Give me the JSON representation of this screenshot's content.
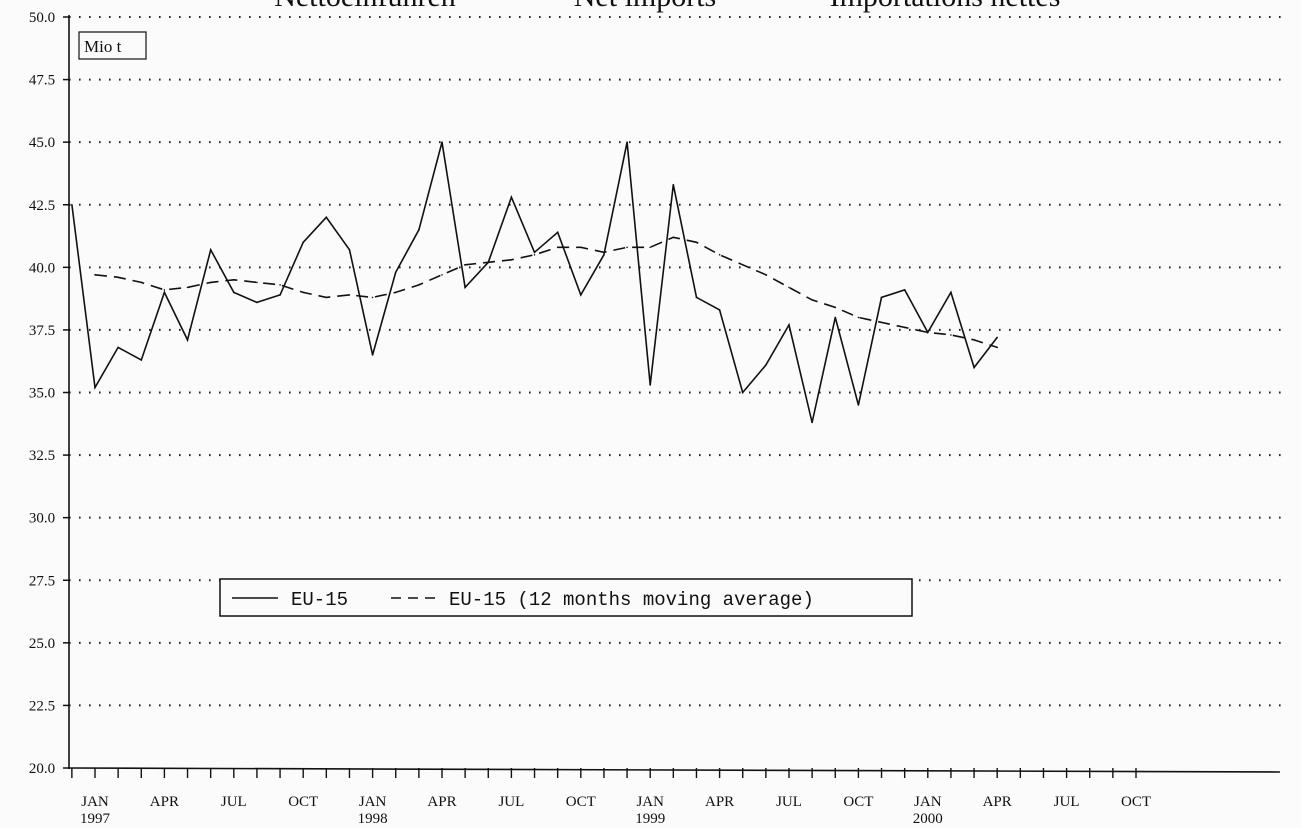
{
  "chart_data": {
    "type": "line",
    "title_parts": [
      "Nettoeinfuhren",
      "Net imports",
      "Importations nettes"
    ],
    "ylabel": "Mio t",
    "ylim": [
      20.0,
      50.0
    ],
    "yticks": [
      "20.0",
      "22.5",
      "25.0",
      "27.5",
      "30.0",
      "32.5",
      "35.0",
      "37.5",
      "40.0",
      "42.5",
      "45.0",
      "47.5",
      "50.0"
    ],
    "grid": true,
    "legend_position": "center-left",
    "x_start": "1997-01",
    "x_end": "2000-10",
    "xtick_labels": [
      {
        "month": 0,
        "label": "JAN",
        "year": "1997"
      },
      {
        "month": 3,
        "label": "APR",
        "year": ""
      },
      {
        "month": 6,
        "label": "JUL",
        "year": ""
      },
      {
        "month": 9,
        "label": "OCT",
        "year": ""
      },
      {
        "month": 12,
        "label": "JAN",
        "year": "1998"
      },
      {
        "month": 15,
        "label": "APR",
        "year": ""
      },
      {
        "month": 18,
        "label": "JUL",
        "year": ""
      },
      {
        "month": 21,
        "label": "OCT",
        "year": ""
      },
      {
        "month": 24,
        "label": "JAN",
        "year": "1999"
      },
      {
        "month": 27,
        "label": "APR",
        "year": ""
      },
      {
        "month": 30,
        "label": "JUL",
        "year": ""
      },
      {
        "month": 33,
        "label": "OCT",
        "year": ""
      },
      {
        "month": 36,
        "label": "JAN",
        "year": "2000"
      },
      {
        "month": 39,
        "label": "APR",
        "year": ""
      },
      {
        "month": 42,
        "label": "JUL",
        "year": ""
      },
      {
        "month": 45,
        "label": "OCT",
        "year": ""
      }
    ],
    "series": [
      {
        "name": "EU-15",
        "style": "solid",
        "x": [
          "1996-12",
          "1997-01",
          "1997-02",
          "1997-03",
          "1997-04",
          "1997-05",
          "1997-06",
          "1997-07",
          "1997-08",
          "1997-09",
          "1997-10",
          "1997-11",
          "1997-12",
          "1998-01",
          "1998-02",
          "1998-03",
          "1998-04",
          "1998-05",
          "1998-06",
          "1998-07",
          "1998-08",
          "1998-09",
          "1998-10",
          "1998-11",
          "1998-12",
          "1999-01",
          "1999-02",
          "1999-03",
          "1999-04",
          "1999-05",
          "1999-06",
          "1999-07",
          "1999-08",
          "1999-09",
          "1999-10",
          "1999-11",
          "1999-12",
          "2000-01",
          "2000-02",
          "2000-03",
          "2000-04"
        ],
        "values": [
          42.5,
          35.2,
          36.8,
          36.3,
          39.0,
          37.1,
          40.7,
          39.0,
          38.6,
          38.9,
          41.0,
          42.0,
          40.7,
          36.5,
          39.8,
          41.5,
          45.0,
          39.2,
          40.2,
          42.8,
          40.6,
          41.4,
          38.9,
          40.5,
          45.0,
          35.3,
          43.3,
          38.8,
          38.3,
          35.0,
          36.1,
          37.7,
          33.8,
          38.0,
          34.5,
          38.8,
          39.1,
          37.4,
          39.0,
          36.0,
          37.2
        ]
      },
      {
        "name": "EU-15 (12 months moving average)",
        "style": "dashed",
        "x": [
          "1997-01",
          "1997-02",
          "1997-03",
          "1997-04",
          "1997-05",
          "1997-06",
          "1997-07",
          "1997-08",
          "1997-09",
          "1997-10",
          "1997-11",
          "1997-12",
          "1998-01",
          "1998-02",
          "1998-03",
          "1998-04",
          "1998-05",
          "1998-06",
          "1998-07",
          "1998-08",
          "1998-09",
          "1998-10",
          "1998-11",
          "1998-12",
          "1999-01",
          "1999-02",
          "1999-03",
          "1999-04",
          "1999-05",
          "1999-06",
          "1999-07",
          "1999-08",
          "1999-09",
          "1999-10",
          "1999-11",
          "1999-12",
          "2000-01",
          "2000-02",
          "2000-03",
          "2000-04"
        ],
        "values": [
          39.7,
          39.6,
          39.4,
          39.1,
          39.2,
          39.4,
          39.5,
          39.4,
          39.3,
          39.0,
          38.8,
          38.9,
          38.8,
          39.0,
          39.3,
          39.7,
          40.1,
          40.2,
          40.3,
          40.5,
          40.8,
          40.8,
          40.6,
          40.8,
          40.8,
          41.2,
          41.0,
          40.5,
          40.1,
          39.7,
          39.2,
          38.7,
          38.4,
          38.0,
          37.8,
          37.6,
          37.4,
          37.3,
          37.1,
          36.8
        ]
      }
    ]
  }
}
